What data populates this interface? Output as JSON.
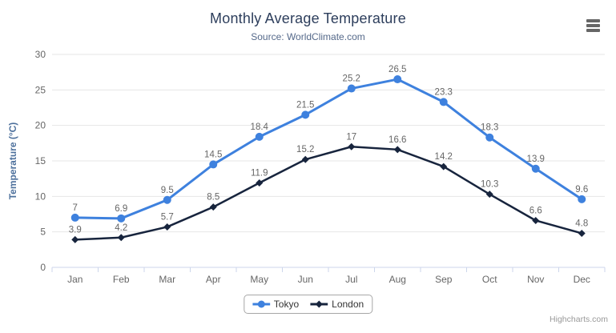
{
  "header": {
    "title": "Monthly Average Temperature",
    "subtitle": "Source: WorldClimate.com"
  },
  "credits": {
    "text": "Highcharts.com"
  },
  "colors": {
    "tokyo": "#3e81de",
    "london": "#17243d",
    "grid": "#e6e6e6",
    "axis_line": "#ccd6eb",
    "tick": "#ccd6eb",
    "axis_label": "#666666",
    "data_label": "#666666",
    "title": "#2d3e5c",
    "subtitle": "#55698a",
    "yaxis_title": "#4d709c",
    "legend_text": "#333333",
    "menu_icon": "#666666",
    "credits_text": "#999999"
  },
  "chart_data": {
    "type": "line",
    "title": "Monthly Average Temperature",
    "subtitle": "Source: WorldClimate.com",
    "categories": [
      "Jan",
      "Feb",
      "Mar",
      "Apr",
      "May",
      "Jun",
      "Jul",
      "Aug",
      "Sep",
      "Oct",
      "Nov",
      "Dec"
    ],
    "series": [
      {
        "name": "Tokyo",
        "color": "#3e81de",
        "marker": "circle",
        "values": [
          7,
          6.9,
          9.5,
          14.5,
          18.4,
          21.5,
          25.2,
          26.5,
          23.3,
          18.3,
          13.9,
          9.6
        ]
      },
      {
        "name": "London",
        "color": "#17243d",
        "marker": "diamond",
        "values": [
          3.9,
          4.2,
          5.7,
          8.5,
          11.9,
          15.2,
          17,
          16.6,
          14.2,
          10.3,
          6.6,
          4.8
        ]
      }
    ],
    "xlabel": "",
    "ylabel": "Temperature (°C)",
    "ylim": [
      0,
      30
    ],
    "ytick_interval": 5,
    "yticks": [
      0,
      5,
      10,
      15,
      20,
      25,
      30
    ],
    "grid": true,
    "data_labels": true,
    "legend_position": "bottom"
  }
}
